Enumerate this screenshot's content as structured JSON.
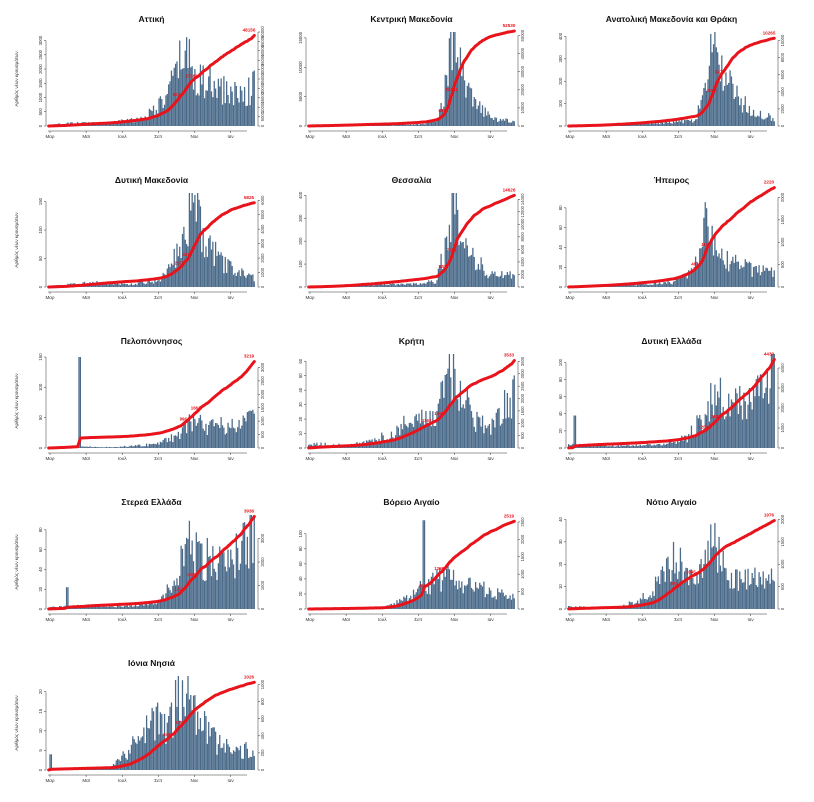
{
  "colors": {
    "bar": "#4a6a8a",
    "line": "#e8131b",
    "axis": "#333333",
    "label": "#e8131b"
  },
  "ylabel_left": "Αριθμός νέων κρουσμάτων",
  "x_ticks": [
    "Μαρ",
    "Μαϊ",
    "Ιουλ",
    "Σεπ",
    "Νοε",
    "Ιαν"
  ],
  "chart_data": [
    {
      "type": "bar",
      "title": "Αττική",
      "ylim": [
        0,
        3300
      ],
      "yticks": [
        0,
        500,
        1000,
        1500,
        2000,
        2500,
        3000
      ],
      "y2lim": [
        0,
        50000
      ],
      "y2ticks": [
        0,
        5000,
        10000,
        15000,
        20000,
        25000,
        30000,
        35000,
        40000,
        45000,
        50000
      ],
      "final_label": "48156",
      "peak": 3100,
      "cum_total": 48156,
      "profile": [
        [
          0,
          0.01
        ],
        [
          0.1,
          0.03
        ],
        [
          0.3,
          0.04
        ],
        [
          0.45,
          0.08
        ],
        [
          0.55,
          0.25
        ],
        [
          0.62,
          0.55
        ],
        [
          0.66,
          0.9
        ],
        [
          0.7,
          0.6
        ],
        [
          0.75,
          0.5
        ],
        [
          0.85,
          0.4
        ],
        [
          0.93,
          0.35
        ],
        [
          1.0,
          0.45
        ]
      ],
      "labels": [
        {
          "t": 0.63,
          "text": "9431"
        },
        {
          "t": 0.7,
          "text": "27561"
        }
      ]
    },
    {
      "type": "bar",
      "title": "Κεντρική Μακεδονία",
      "ylim": [
        0,
        16000
      ],
      "yticks": [
        0,
        5000,
        10000,
        15000
      ],
      "y2lim": [
        0,
        52000
      ],
      "y2ticks": [
        0,
        10000,
        20000,
        30000,
        40000,
        50000
      ],
      "final_label": "52530",
      "peak": 15000,
      "cum_total": 52530,
      "profile": [
        [
          0,
          0.005
        ],
        [
          0.4,
          0.01
        ],
        [
          0.55,
          0.02
        ],
        [
          0.62,
          0.06
        ],
        [
          0.67,
          0.5
        ],
        [
          0.7,
          1.0
        ],
        [
          0.74,
          0.6
        ],
        [
          0.8,
          0.25
        ],
        [
          0.9,
          0.08
        ],
        [
          1.0,
          0.05
        ]
      ],
      "labels": [
        {
          "t": 0.66,
          "text": "8911"
        },
        {
          "t": 0.7,
          "text": "22661"
        }
      ]
    },
    {
      "type": "bar",
      "title": "Ανατολική Μακεδονία και Θράκη",
      "ylim": [
        0,
        420
      ],
      "yticks": [
        0,
        100,
        200,
        300,
        400
      ],
      "y2lim": [
        0,
        11000
      ],
      "y2ticks": [
        0,
        2000,
        4000,
        6000,
        8000,
        10000
      ],
      "final_label": "10265",
      "peak": 410,
      "cum_total": 10265,
      "profile": [
        [
          0,
          0.005
        ],
        [
          0.3,
          0.02
        ],
        [
          0.5,
          0.04
        ],
        [
          0.62,
          0.06
        ],
        [
          0.68,
          0.6
        ],
        [
          0.71,
          1.0
        ],
        [
          0.75,
          0.6
        ],
        [
          0.82,
          0.3
        ],
        [
          0.9,
          0.15
        ],
        [
          1.0,
          0.08
        ]
      ],
      "labels": [
        {
          "t": 0.7,
          "text": "3012"
        },
        {
          "t": 0.74,
          "text": "5971"
        }
      ]
    },
    {
      "type": "bar",
      "title": "Δυτική Μακεδονία",
      "ylim": [
        0,
        165
      ],
      "yticks": [
        0,
        50,
        100,
        150
      ],
      "y2lim": [
        0,
        6500
      ],
      "y2ticks": [
        0,
        1000,
        2000,
        3000,
        4000,
        5000,
        6000
      ],
      "final_label": "5825",
      "peak": 155,
      "cum_total": 5825,
      "profile": [
        [
          0,
          0.01
        ],
        [
          0.2,
          0.05
        ],
        [
          0.4,
          0.03
        ],
        [
          0.55,
          0.08
        ],
        [
          0.62,
          0.4
        ],
        [
          0.66,
          0.7
        ],
        [
          0.7,
          1.0
        ],
        [
          0.76,
          0.5
        ],
        [
          0.85,
          0.25
        ],
        [
          1.0,
          0.1
        ]
      ],
      "labels": [
        {
          "t": 0.64,
          "text": "2107"
        },
        {
          "t": 0.68,
          "text": "3419"
        }
      ]
    },
    {
      "type": "bar",
      "title": "Θεσσαλία",
      "ylim": [
        0,
        410
      ],
      "yticks": [
        0,
        100,
        200,
        300,
        400
      ],
      "y2lim": [
        0,
        15000
      ],
      "y2ticks": [
        0,
        2000,
        4000,
        6000,
        8000,
        10000,
        12000,
        14000
      ],
      "final_label": "14626",
      "peak": 400,
      "cum_total": 14626,
      "profile": [
        [
          0,
          0.005
        ],
        [
          0.2,
          0.02
        ],
        [
          0.5,
          0.03
        ],
        [
          0.62,
          0.06
        ],
        [
          0.67,
          0.5
        ],
        [
          0.7,
          1.0
        ],
        [
          0.74,
          0.6
        ],
        [
          0.8,
          0.3
        ],
        [
          0.9,
          0.12
        ],
        [
          1.0,
          0.15
        ]
      ],
      "labels": [
        {
          "t": 0.66,
          "text": "3204"
        },
        {
          "t": 0.7,
          "text": "7208"
        }
      ]
    },
    {
      "type": "bar",
      "title": "Ήπειρος",
      "ylim": [
        0,
        95
      ],
      "yticks": [
        0,
        20,
        40,
        60,
        80
      ],
      "y2lim": [
        0,
        2100
      ],
      "y2ticks": [
        0,
        500,
        1000,
        1500,
        2000
      ],
      "final_label": "2220",
      "peak": 90,
      "cum_total": 2220,
      "profile": [
        [
          0,
          0.01
        ],
        [
          0.3,
          0.02
        ],
        [
          0.5,
          0.05
        ],
        [
          0.6,
          0.15
        ],
        [
          0.64,
          0.35
        ],
        [
          0.67,
          1.0
        ],
        [
          0.7,
          0.5
        ],
        [
          0.76,
          0.3
        ],
        [
          0.88,
          0.2
        ],
        [
          1.0,
          0.15
        ]
      ],
      "labels": [
        {
          "t": 0.62,
          "text": "481"
        },
        {
          "t": 0.67,
          "text": "1149"
        }
      ]
    },
    {
      "type": "bar",
      "title": "Πελοπόννησος",
      "ylim": [
        0,
        155
      ],
      "yticks": [
        0,
        50,
        100,
        150
      ],
      "y2lim": [
        0,
        3500
      ],
      "y2ticks": [
        0,
        500,
        1000,
        1500,
        2000,
        2500,
        3000
      ],
      "final_label": "3219",
      "peak": 55,
      "cum_total": 3219,
      "spike": {
        "t": 0.15,
        "v": 150
      },
      "profile": [
        [
          0,
          0.02
        ],
        [
          0.14,
          0.05
        ],
        [
          0.3,
          0.02
        ],
        [
          0.5,
          0.1
        ],
        [
          0.6,
          0.3
        ],
        [
          0.66,
          0.6
        ],
        [
          0.7,
          0.8
        ],
        [
          0.78,
          0.6
        ],
        [
          0.88,
          0.7
        ],
        [
          1.0,
          0.8
        ]
      ],
      "labels": [
        {
          "t": 0.66,
          "text": "996"
        },
        {
          "t": 0.72,
          "text": "1661"
        }
      ]
    },
    {
      "type": "bar",
      "title": "Κρήτη",
      "ylim": [
        0,
        65
      ],
      "yticks": [
        0,
        10,
        20,
        30,
        40,
        50,
        60
      ],
      "y2lim": [
        0,
        3800
      ],
      "y2ticks": [
        0,
        500,
        1000,
        1500,
        2000,
        2500,
        3000,
        3500
      ],
      "final_label": "3533",
      "peak": 60,
      "cum_total": 3533,
      "profile": [
        [
          0,
          0.05
        ],
        [
          0.2,
          0.03
        ],
        [
          0.4,
          0.15
        ],
        [
          0.5,
          0.35
        ],
        [
          0.58,
          0.3
        ],
        [
          0.64,
          0.5
        ],
        [
          0.68,
          1.0
        ],
        [
          0.73,
          0.7
        ],
        [
          0.8,
          0.35
        ],
        [
          0.88,
          0.25
        ],
        [
          1.0,
          0.6
        ]
      ],
      "labels": [
        {
          "t": 0.58,
          "text": "1162"
        },
        {
          "t": 0.64,
          "text": "1560"
        }
      ]
    },
    {
      "type": "bar",
      "title": "Δυτική Ελλάδα",
      "ylim": [
        0,
        110
      ],
      "yticks": [
        0,
        20,
        40,
        60,
        80,
        100
      ],
      "y2lim": [
        0,
        4700
      ],
      "y2ticks": [
        0,
        1000,
        2000,
        3000,
        4000
      ],
      "final_label": "4430",
      "peak": 80,
      "cum_total": 4430,
      "spike": {
        "t": 0.03,
        "v": 38
      },
      "profile": [
        [
          0,
          0.05
        ],
        [
          0.2,
          0.03
        ],
        [
          0.45,
          0.05
        ],
        [
          0.58,
          0.15
        ],
        [
          0.66,
          0.5
        ],
        [
          0.72,
          0.8
        ],
        [
          0.78,
          0.6
        ],
        [
          0.88,
          0.7
        ],
        [
          0.96,
          0.8
        ],
        [
          1.0,
          1.3
        ]
      ],
      "labels": [
        {
          "t": 0.66,
          "text": "1200"
        },
        {
          "t": 0.72,
          "text": "2187"
        }
      ]
    },
    {
      "type": "bar",
      "title": "Στερεά Ελλάδα",
      "ylim": [
        0,
        95
      ],
      "yticks": [
        0,
        20,
        40,
        60,
        80
      ],
      "y2lim": [
        0,
        4000
      ],
      "y2ticks": [
        0,
        1000,
        2000,
        3000
      ],
      "final_label": "3936",
      "peak": 90,
      "cum_total": 3936,
      "spike": {
        "t": 0.09,
        "v": 22
      },
      "profile": [
        [
          0,
          0.02
        ],
        [
          0.2,
          0.04
        ],
        [
          0.4,
          0.03
        ],
        [
          0.55,
          0.1
        ],
        [
          0.62,
          0.35
        ],
        [
          0.68,
          0.8
        ],
        [
          0.73,
          0.6
        ],
        [
          0.82,
          0.5
        ],
        [
          0.92,
          0.6
        ],
        [
          1.0,
          0.9
        ]
      ],
      "labels": [
        {
          "t": 0.64,
          "text": "1202"
        },
        {
          "t": 0.7,
          "text": "1998"
        }
      ]
    },
    {
      "type": "bar",
      "title": "Βόρειο Αιγαίο",
      "ylim": [
        0,
        125
      ],
      "yticks": [
        0,
        20,
        40,
        60,
        80,
        100
      ],
      "y2lim": [
        0,
        2700
      ],
      "y2ticks": [
        0,
        500,
        1000,
        1500,
        2000,
        2500
      ],
      "final_label": "2519",
      "peak": 45,
      "cum_total": 2519,
      "spike": {
        "t": 0.56,
        "v": 118
      },
      "profile": [
        [
          0,
          0.01
        ],
        [
          0.35,
          0.02
        ],
        [
          0.48,
          0.3
        ],
        [
          0.55,
          0.6
        ],
        [
          0.62,
          0.8
        ],
        [
          0.68,
          1.0
        ],
        [
          0.75,
          0.7
        ],
        [
          0.85,
          0.6
        ],
        [
          0.95,
          0.4
        ],
        [
          1.0,
          0.35
        ]
      ],
      "labels": [
        {
          "t": 0.56,
          "text": "850"
        },
        {
          "t": 0.64,
          "text": "1258"
        }
      ]
    },
    {
      "type": "bar",
      "title": "Νότιο Αιγαίο",
      "ylim": [
        0,
        42
      ],
      "yticks": [
        0,
        10,
        20,
        30,
        40
      ],
      "y2lim": [
        0,
        2100
      ],
      "y2ticks": [
        0,
        500,
        1000,
        1500,
        2000
      ],
      "final_label": "1976",
      "peak": 32,
      "cum_total": 1976,
      "profile": [
        [
          0,
          0.03
        ],
        [
          0.25,
          0.02
        ],
        [
          0.4,
          0.2
        ],
        [
          0.48,
          0.7
        ],
        [
          0.54,
          0.6
        ],
        [
          0.6,
          0.5
        ],
        [
          0.64,
          0.5
        ],
        [
          0.7,
          1.1
        ],
        [
          0.76,
          0.5
        ],
        [
          0.85,
          0.4
        ],
        [
          1.0,
          0.4
        ]
      ],
      "labels": [
        {
          "t": 0.52,
          "text": "674"
        },
        {
          "t": 0.6,
          "text": "1045"
        }
      ]
    },
    {
      "type": "bar",
      "title": "Ιόνια Νησιά",
      "ylim": [
        0,
        24
      ],
      "yticks": [
        0,
        5,
        10,
        15,
        20
      ],
      "y2lim": [
        0,
        1100
      ],
      "y2ticks": [
        0,
        200,
        400,
        600,
        800,
        1000
      ],
      "final_label": "1026",
      "peak": 22,
      "cum_total": 1026,
      "spike": {
        "t": 0.01,
        "v": 4
      },
      "profile": [
        [
          0,
          0.02
        ],
        [
          0.3,
          0.02
        ],
        [
          0.36,
          0.15
        ],
        [
          0.44,
          0.35
        ],
        [
          0.52,
          0.55
        ],
        [
          0.58,
          0.5
        ],
        [
          0.63,
          0.8
        ],
        [
          0.67,
          1.0
        ],
        [
          0.72,
          0.6
        ],
        [
          0.82,
          0.3
        ],
        [
          0.92,
          0.2
        ],
        [
          1.0,
          0.25
        ]
      ],
      "labels": [
        {
          "t": 0.58,
          "text": "349"
        },
        {
          "t": 0.64,
          "text": "575"
        }
      ]
    }
  ]
}
